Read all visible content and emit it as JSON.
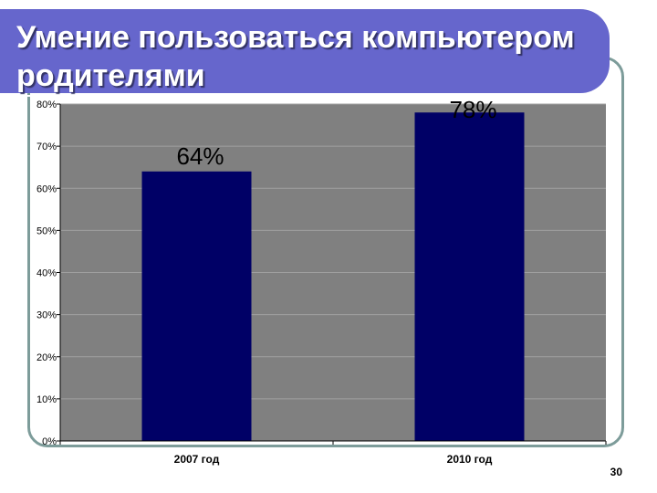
{
  "slide": {
    "title": "Умение пользоваться компьютером родителями",
    "page_number": "30"
  },
  "colors": {
    "banner": "#6666cc",
    "plot_background": "#808080",
    "bar": "#000066",
    "frame": "#7d9c9a"
  },
  "chart_data": {
    "type": "bar",
    "categories": [
      "2007 год",
      "2010 год"
    ],
    "values": [
      64,
      78
    ],
    "data_labels": [
      "64%",
      "78%"
    ],
    "yticks": [
      "0%",
      "10%",
      "20%",
      "30%",
      "40%",
      "50%",
      "60%",
      "70%",
      "80%"
    ],
    "ylim": [
      0,
      80
    ],
    "grid": true,
    "legend": "none"
  }
}
